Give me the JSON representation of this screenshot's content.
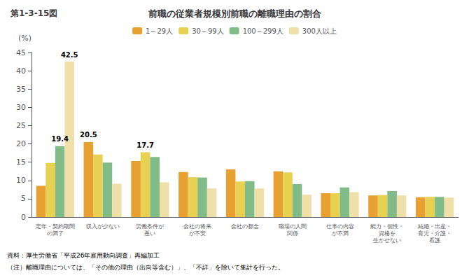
{
  "chart_data": {
    "type": "bar",
    "title": "前職の従業者規模別前職の離職理由の割合",
    "subtitle": "第1-3-15図",
    "ylabel": "(%)",
    "categories": [
      "定年・契約期間\nの満了",
      "収入が少ない",
      "労働条件が\n悪い",
      "会社の将来\nが不安",
      "会社の都合",
      "職場の人間\n関係",
      "仕事の内容\nが不満",
      "能力・個性・\n資格を\n生かせない",
      "結婚・出産・\n育児・介護・\n看護"
    ],
    "series": [
      {
        "name": "1～29人",
        "color": "#E8A030",
        "values": [
          8.5,
          20.5,
          15.3,
          12.3,
          13.0,
          12.5,
          6.5,
          5.9,
          5.4
        ]
      },
      {
        "name": "30～99人",
        "color": "#E8D050",
        "values": [
          14.8,
          17.1,
          17.7,
          10.9,
          9.7,
          12.2,
          6.5,
          6.0,
          5.5
        ]
      },
      {
        "name": "100～299人",
        "color": "#80BB88",
        "values": [
          19.4,
          14.9,
          16.4,
          10.8,
          9.8,
          9.0,
          8.1,
          7.1,
          5.5
        ]
      },
      {
        "name": "300人以上",
        "color": "#EEE0A8",
        "values": [
          42.5,
          9.1,
          9.5,
          7.8,
          7.8,
          6.1,
          6.8,
          5.9,
          5.3
        ]
      }
    ],
    "ylim": [
      0,
      45
    ],
    "yticks": [
      0,
      5,
      10,
      15,
      20,
      25,
      30,
      35,
      40,
      45
    ],
    "grid": false,
    "legend": "top",
    "annotations": [
      {
        "text": "19.4",
        "category": "定年・契約期間\nの満了",
        "series": "100～299人"
      },
      {
        "text": "42.5",
        "category": "定年・契約期間\nの満了",
        "series": "300人以上"
      },
      {
        "text": "20.5",
        "category": "収入が少ない",
        "series": "1～29人"
      },
      {
        "text": "17.7",
        "category": "労働条件が\n悪い",
        "series": "30～99人"
      }
    ],
    "footnotes": [
      "資料：厚生労働省「平成26年雇用動向調査」再編加工",
      "（注）離職理由については、「その他の理由（出向等含む）」、「不詳」を除いて集計を行った。"
    ]
  }
}
